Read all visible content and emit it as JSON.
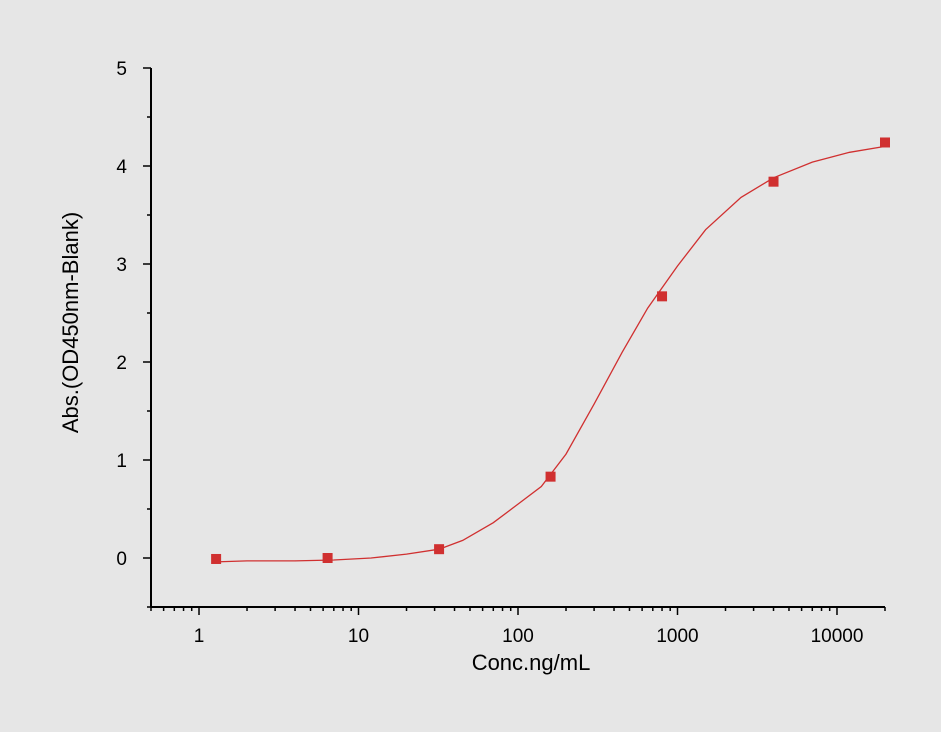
{
  "chart_data": {
    "type": "scatter",
    "title": "",
    "xlabel": "Conc.ng/mL",
    "ylabel": "Abs.(OD450nm-Blank)",
    "x_scale": "log",
    "xlim": [
      0.5,
      20000
    ],
    "ylim": [
      -0.5,
      5
    ],
    "x_ticks": [
      1,
      10,
      100,
      1000,
      10000
    ],
    "x_tick_labels": [
      "1",
      "10",
      "100",
      "1000",
      "10000"
    ],
    "y_ticks": [
      0,
      1,
      2,
      3,
      4,
      5
    ],
    "y_tick_labels": [
      "0",
      "1",
      "2",
      "3",
      "4",
      "5"
    ],
    "grid": false,
    "legend": "none",
    "series": [
      {
        "marker_color": "#d03030",
        "line_color": "#d03030",
        "points": [
          {
            "x": 1.28,
            "y": -0.01
          },
          {
            "x": 6.4,
            "y": 0.0
          },
          {
            "x": 32,
            "y": 0.09
          },
          {
            "x": 160,
            "y": 0.83
          },
          {
            "x": 800,
            "y": 2.67
          },
          {
            "x": 4000,
            "y": 3.84
          },
          {
            "x": 20000,
            "y": 4.24
          }
        ],
        "fit_curve": [
          {
            "x": 1.28,
            "y": -0.04
          },
          {
            "x": 2,
            "y": -0.03
          },
          {
            "x": 4,
            "y": -0.03
          },
          {
            "x": 7,
            "y": -0.02
          },
          {
            "x": 12,
            "y": 0.0
          },
          {
            "x": 20,
            "y": 0.04
          },
          {
            "x": 32,
            "y": 0.09
          },
          {
            "x": 45,
            "y": 0.18
          },
          {
            "x": 70,
            "y": 0.36
          },
          {
            "x": 100,
            "y": 0.55
          },
          {
            "x": 140,
            "y": 0.73
          },
          {
            "x": 200,
            "y": 1.06
          },
          {
            "x": 300,
            "y": 1.57
          },
          {
            "x": 450,
            "y": 2.1
          },
          {
            "x": 650,
            "y": 2.55
          },
          {
            "x": 1000,
            "y": 2.98
          },
          {
            "x": 1500,
            "y": 3.35
          },
          {
            "x": 2500,
            "y": 3.68
          },
          {
            "x": 4000,
            "y": 3.88
          },
          {
            "x": 7000,
            "y": 4.04
          },
          {
            "x": 12000,
            "y": 4.14
          },
          {
            "x": 20000,
            "y": 4.2
          }
        ]
      }
    ]
  }
}
